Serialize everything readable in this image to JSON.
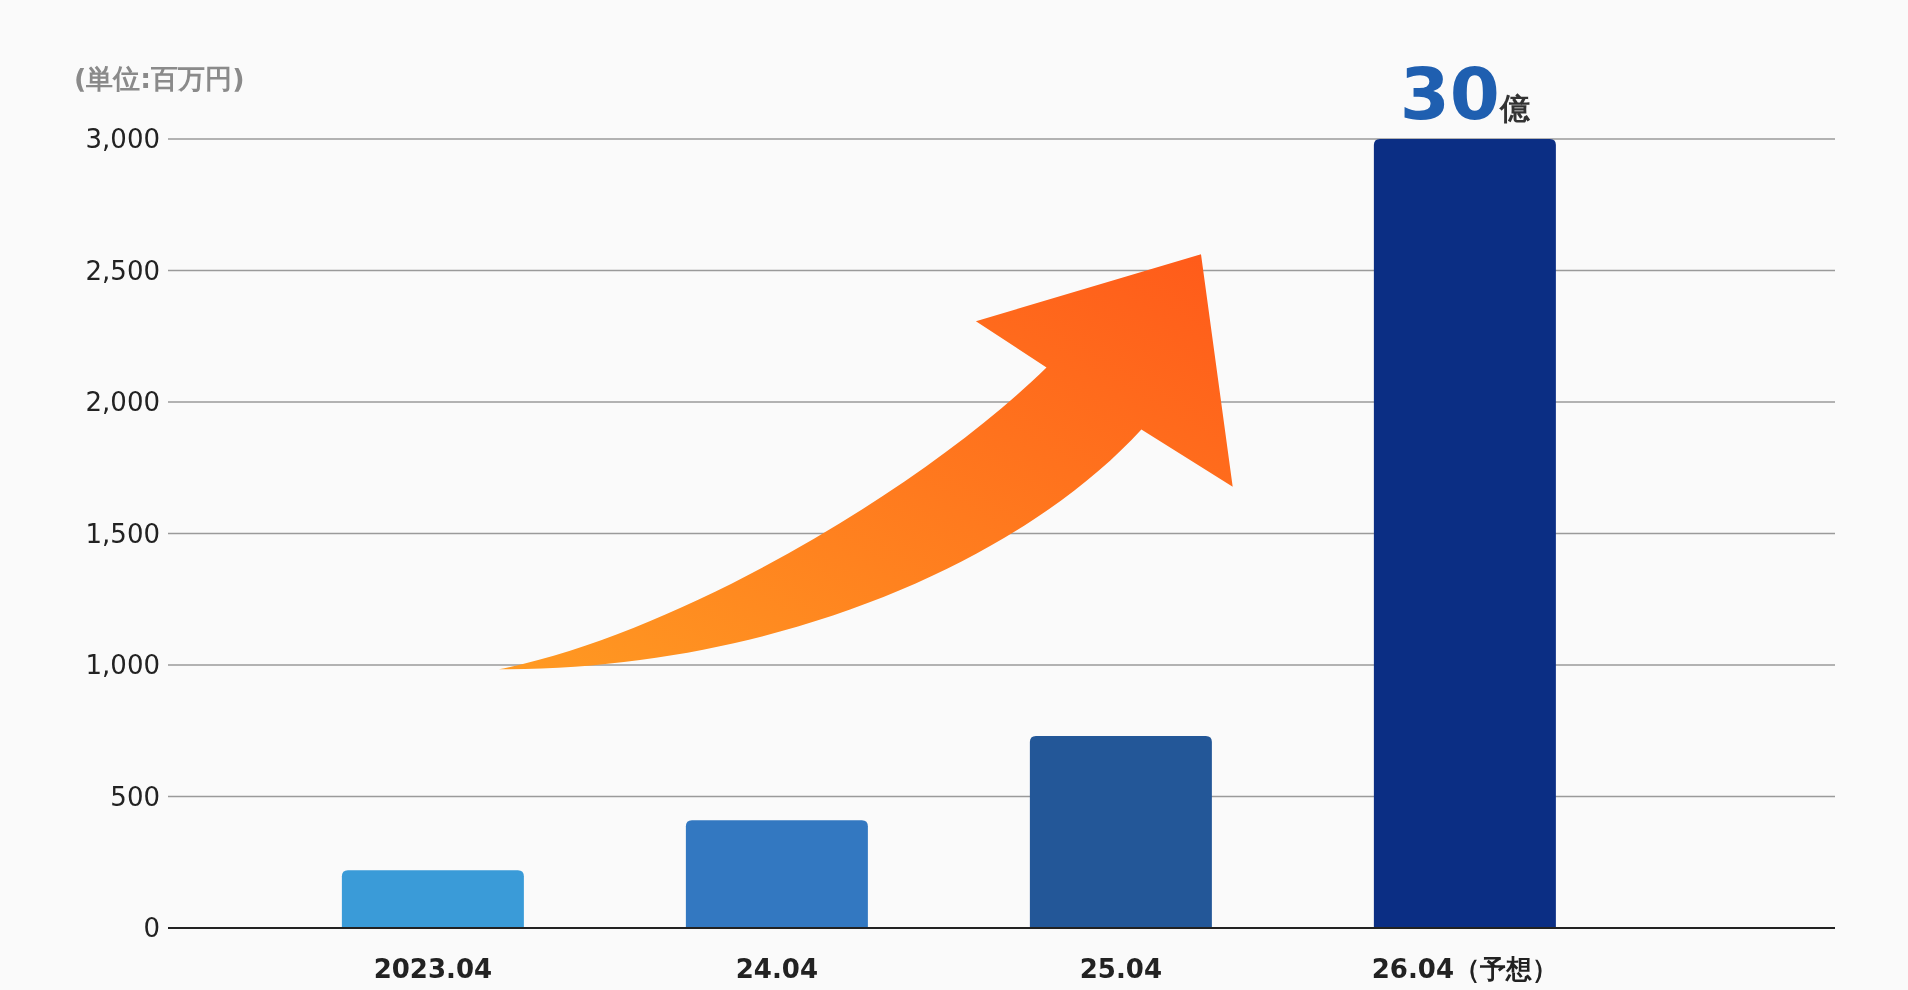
{
  "chart_data": {
    "type": "bar",
    "ylabel": "(単位:百万円)",
    "categories": [
      "2023.04",
      "24.04",
      "25.04",
      "26.04（予想）"
    ],
    "values": [
      220,
      410,
      730,
      3000
    ],
    "colors": [
      "#3a9bd8",
      "#3378c1",
      "#235798",
      "#0b2e84"
    ],
    "ylim": [
      0,
      3000
    ],
    "yticks": [
      0,
      500,
      {
        "value": 1000,
        "label": "1,000"
      },
      {
        "value": 1500,
        "label": "1,500"
      },
      {
        "value": 2000,
        "label": "2,000"
      },
      {
        "value": 2500,
        "label": "2,500"
      },
      {
        "value": 3000,
        "label": "3,000"
      }
    ],
    "grid": "y",
    "annotations": [
      {
        "text": "30億",
        "x": "26.04（予想）",
        "y": 3000
      }
    ]
  }
}
